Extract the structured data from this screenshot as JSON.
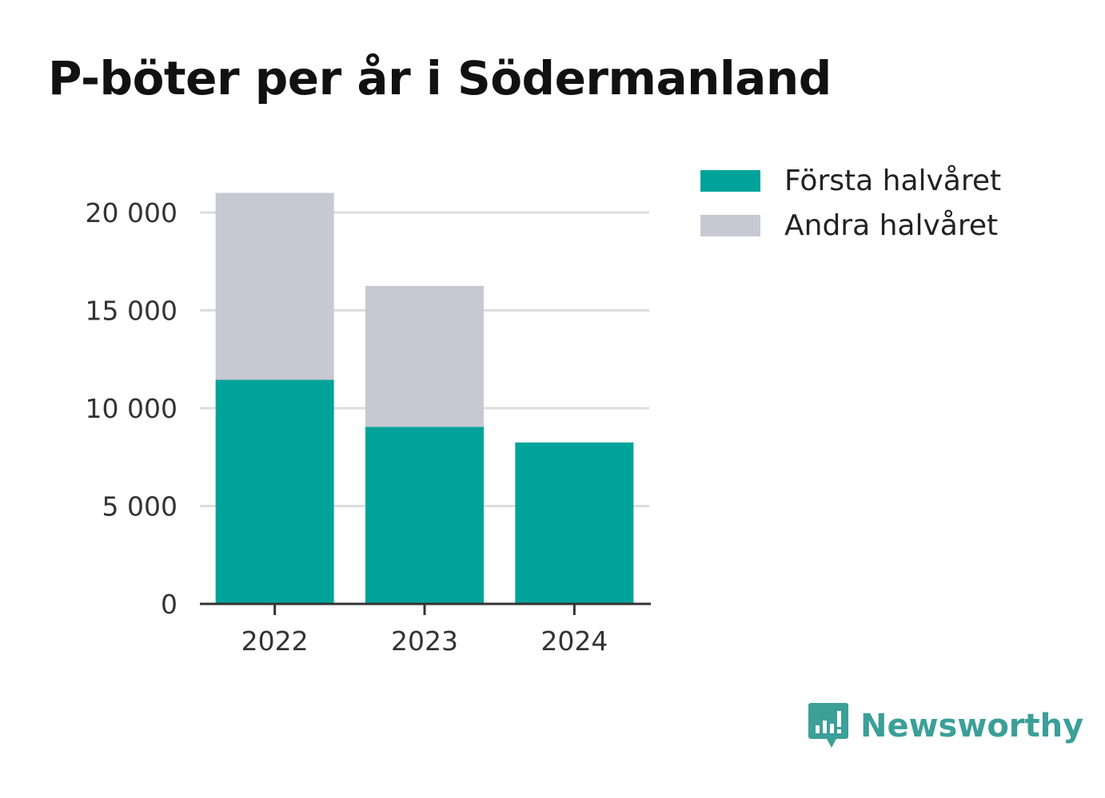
{
  "title": "P-böter per år i Södermanland",
  "colors": {
    "first_half": "#00a39a",
    "second_half": "#c8c8d2",
    "grid": "#dddddd",
    "axis": "#333333",
    "brand": "#3c9f98"
  },
  "legend": {
    "items": [
      {
        "label": "Första halvåret",
        "color": "#00a39a"
      },
      {
        "label": "Andra halvåret",
        "color": "#c8c8d2"
      }
    ]
  },
  "brand": {
    "name": "Newsworthy",
    "icon": "bar-chart-speech-bubble-icon"
  },
  "chart_data": {
    "type": "bar",
    "stacked": true,
    "title": "P-böter per år i Södermanland",
    "xlabel": "",
    "ylabel": "",
    "categories": [
      "2022",
      "2023",
      "2024"
    ],
    "series": [
      {
        "name": "Första halvåret",
        "values": [
          11450,
          9050,
          8250
        ]
      },
      {
        "name": "Andra halvåret",
        "values": [
          9550,
          7200,
          0
        ]
      }
    ],
    "ylim": [
      0,
      20000
    ],
    "yticks": [
      0,
      5000,
      10000,
      15000,
      20000
    ],
    "ytick_labels": [
      "0",
      "5 000",
      "10 000",
      "15 000",
      "20 000"
    ],
    "grid": true,
    "legend_position": "top-right"
  }
}
